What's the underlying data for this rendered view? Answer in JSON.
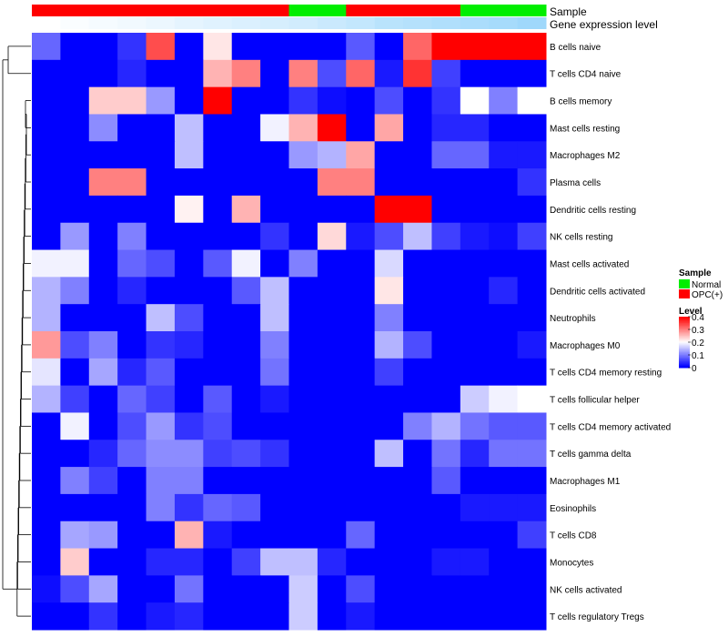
{
  "chart_data": {
    "type": "heatmap",
    "title": "",
    "annotation_labels": {
      "sample": "Sample",
      "gene": "Gene expression level"
    },
    "rows": [
      "B cells naive",
      "T cells CD4 naive",
      "B cells memory",
      "Mast cells resting",
      "Macrophages M2",
      "Plasma cells",
      "Dendritic cells resting",
      "NK cells resting",
      "Mast cells activated",
      "Dendritic cells activated",
      "Neutrophils",
      "Macrophages M0",
      "T cells CD4 memory resting",
      "T cells follicular helper",
      "T cells CD4 memory activated",
      "T cells gamma delta",
      "Macrophages M1",
      "Eosinophils",
      "T cells CD8",
      "Monocytes",
      "NK cells activated",
      "T cells regulatory  Tregs"
    ],
    "n_columns": 18,
    "sample_groups": [
      "OPC(+)",
      "OPC(+)",
      "OPC(+)",
      "OPC(+)",
      "OPC(+)",
      "OPC(+)",
      "OPC(+)",
      "OPC(+)",
      "OPC(+)",
      "Normal",
      "Normal",
      "OPC(+)",
      "OPC(+)",
      "OPC(+)",
      "OPC(+)",
      "Normal",
      "Normal",
      "Normal"
    ],
    "gene_expression_level": [
      0.0,
      0.04,
      0.08,
      0.12,
      0.16,
      0.22,
      0.26,
      0.3,
      0.34,
      0.38,
      0.44,
      0.5,
      0.58,
      0.62,
      0.66,
      0.7,
      0.74,
      0.8
    ],
    "values": [
      [
        0.08,
        0,
        0,
        0.04,
        0.34,
        0,
        0.22,
        0,
        0,
        0,
        0,
        0.07,
        0,
        0.32,
        0.4,
        0.4,
        0.4,
        0.4
      ],
      [
        0,
        0,
        0,
        0.03,
        0,
        0,
        0.26,
        0.3,
        0,
        0.3,
        0.06,
        0.32,
        0.02,
        0.36,
        0.05,
        0,
        0,
        0
      ],
      [
        0,
        0,
        0.24,
        0.24,
        0.12,
        0,
        0.4,
        0,
        0,
        0.04,
        0.01,
        0,
        0.06,
        0,
        0.04,
        0.2,
        0.1,
        0.2
      ],
      [
        0,
        0,
        0.11,
        0,
        0,
        0.15,
        0,
        0,
        0.19,
        0.26,
        0.4,
        0,
        0.27,
        0,
        0.03,
        0.03,
        0,
        0
      ],
      [
        0,
        0,
        0,
        0,
        0,
        0.15,
        0,
        0,
        0,
        0.12,
        0.14,
        0.27,
        0,
        0,
        0.08,
        0.08,
        0.02,
        0.02
      ],
      [
        0,
        0,
        0.3,
        0.3,
        0,
        0,
        0,
        0,
        0,
        0,
        0.3,
        0.3,
        0,
        0,
        0,
        0,
        0,
        0.04
      ],
      [
        0,
        0,
        0,
        0,
        0,
        0.21,
        0,
        0.26,
        0,
        0,
        0,
        0,
        0.4,
        0.4,
        0,
        0,
        0,
        0
      ],
      [
        0,
        0.12,
        0,
        0.1,
        0,
        0,
        0,
        0,
        0.04,
        0,
        0.23,
        0.02,
        0.06,
        0.15,
        0.05,
        0.02,
        0.01,
        0.05
      ],
      [
        0.19,
        0.19,
        0,
        0.08,
        0.06,
        0,
        0.07,
        0.19,
        0,
        0.1,
        0,
        0,
        0.17,
        0,
        0,
        0,
        0,
        0
      ],
      [
        0.14,
        0.1,
        0,
        0.03,
        0,
        0,
        0,
        0.07,
        0.15,
        0,
        0,
        0,
        0.22,
        0,
        0,
        0,
        0.03,
        0
      ],
      [
        0.14,
        0,
        0,
        0,
        0.15,
        0.06,
        0,
        0,
        0.15,
        0,
        0,
        0,
        0.1,
        0,
        0,
        0,
        0,
        0
      ],
      [
        0.28,
        0.06,
        0.1,
        0,
        0.04,
        0.03,
        0,
        0,
        0.1,
        0,
        0,
        0,
        0.14,
        0.06,
        0,
        0,
        0,
        0.02
      ],
      [
        0.18,
        0,
        0.13,
        0.03,
        0.07,
        0,
        0,
        0,
        0.09,
        0,
        0,
        0,
        0.05,
        0,
        0,
        0,
        0,
        0
      ],
      [
        0.14,
        0.05,
        0,
        0.08,
        0.05,
        0,
        0.07,
        0,
        0.02,
        0,
        0,
        0,
        0,
        0,
        0,
        0.16,
        0.19,
        0.2
      ],
      [
        0,
        0.19,
        0,
        0.06,
        0.12,
        0.04,
        0.06,
        0,
        0,
        0,
        0,
        0,
        0,
        0.1,
        0.14,
        0.09,
        0.07,
        0.07
      ],
      [
        0,
        0,
        0.03,
        0.08,
        0.11,
        0.11,
        0.05,
        0.06,
        0.04,
        0,
        0,
        0,
        0.15,
        0,
        0.09,
        0.03,
        0.09,
        0.09
      ],
      [
        0,
        0.1,
        0.05,
        0,
        0.1,
        0.1,
        0,
        0,
        0,
        0,
        0,
        0,
        0,
        0,
        0.07,
        0,
        0,
        0
      ],
      [
        0,
        0,
        0,
        0,
        0.1,
        0.04,
        0.08,
        0.07,
        0,
        0,
        0,
        0,
        0,
        0,
        0,
        0.02,
        0.02,
        0.02
      ],
      [
        0,
        0.13,
        0.12,
        0,
        0,
        0.26,
        0.02,
        0,
        0,
        0,
        0,
        0.08,
        0,
        0,
        0,
        0,
        0,
        0.05
      ],
      [
        0,
        0.24,
        0,
        0,
        0.03,
        0.03,
        0,
        0.05,
        0.15,
        0.15,
        0.03,
        0,
        0,
        0,
        0.02,
        0.02,
        0,
        0
      ],
      [
        0.01,
        0.06,
        0.13,
        0,
        0,
        0.09,
        0,
        0,
        0,
        0.16,
        0,
        0.06,
        0,
        0,
        0,
        0,
        0,
        0
      ],
      [
        0,
        0,
        0.04,
        0,
        0.02,
        0.03,
        0,
        0,
        0,
        0.16,
        0,
        0.02,
        0,
        0,
        0,
        0,
        0,
        0
      ]
    ],
    "legend": {
      "sample": {
        "title": "Sample",
        "entries": [
          {
            "label": "Normal",
            "color": "#00ee00"
          },
          {
            "label": "OPC(+)",
            "color": "#ff0000"
          }
        ]
      },
      "level": {
        "title": "Level",
        "ticks": [
          0.4,
          0.3,
          0.2,
          0.1,
          0
        ],
        "max": 0.4,
        "min": 0
      }
    },
    "colors": {
      "low": "#0000ff",
      "mid": "#ffffff",
      "high": "#ff0000",
      "gene_low": "#ffffff",
      "gene_high": "#87cefa"
    }
  }
}
